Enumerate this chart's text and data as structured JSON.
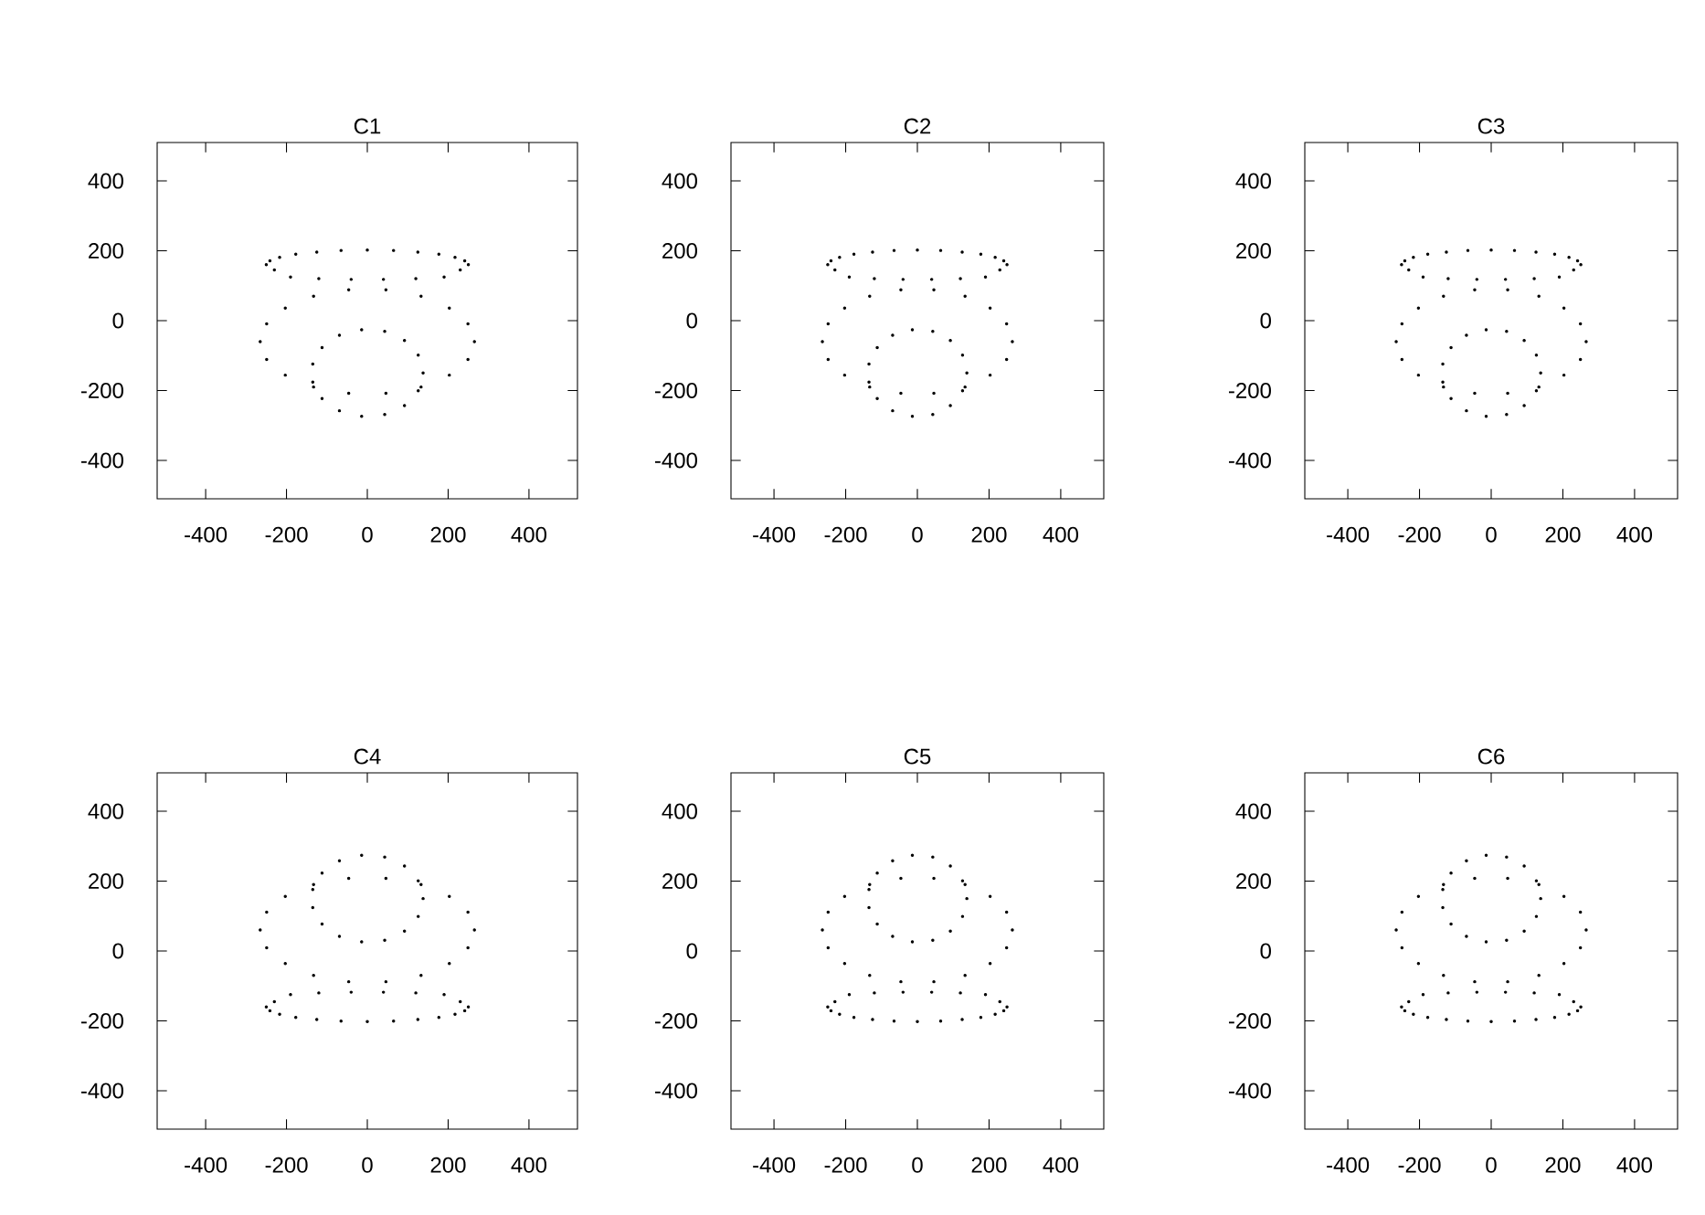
{
  "chart_data": [
    {
      "type": "scatter",
      "title": "C1",
      "xlim": [
        -520,
        520
      ],
      "ylim": [
        -510,
        510
      ],
      "xticks": [
        -400,
        -200,
        0,
        200,
        400
      ],
      "yticks": [
        -400,
        -200,
        0,
        200,
        400
      ],
      "series": [
        {
          "color": "#000000",
          "x": [
            250,
            241,
            217,
            177,
            125,
            65,
            0,
            -65,
            -125,
            -177,
            -217,
            -241,
            -250,
            -230,
            -190,
            -120,
            -40,
            40,
            120,
            190,
            230,
            265,
            249,
            203,
            133,
            46,
            -46,
            -133,
            -203,
            -249,
            -265,
            -249,
            -203,
            -133,
            -46,
            46,
            133,
            203,
            249,
            138,
            126,
            92,
            43,
            -14,
            -69,
            -112,
            -135,
            -135,
            -112,
            -69,
            -14,
            43,
            92,
            126
          ],
          "values": [
            160,
            171,
            181,
            190,
            196,
            201,
            202,
            201,
            196,
            190,
            181,
            171,
            160,
            145,
            125,
            120,
            118,
            118,
            120,
            125,
            145,
            -60,
            -9,
            36,
            70,
            88,
            88,
            70,
            36,
            -9,
            -60,
            -111,
            -156,
            -190,
            -208,
            -208,
            -190,
            -156,
            -111,
            -150,
            -99,
            -57,
            -31,
            -26,
            -42,
            -77,
            -124,
            -176,
            -223,
            -258,
            -274,
            -269,
            -243,
            -201
          ]
        }
      ]
    },
    {
      "type": "scatter",
      "title": "C2",
      "xlim": [
        -520,
        520
      ],
      "ylim": [
        -510,
        510
      ],
      "xticks": [
        -400,
        -200,
        0,
        200,
        400
      ],
      "yticks": [
        -400,
        -200,
        0,
        200,
        400
      ],
      "series": [
        {
          "color": "#000000",
          "x": [
            250,
            241,
            217,
            177,
            125,
            65,
            0,
            -65,
            -125,
            -177,
            -217,
            -241,
            -250,
            -230,
            -190,
            -120,
            -40,
            40,
            120,
            190,
            230,
            265,
            249,
            203,
            133,
            46,
            -46,
            -133,
            -203,
            -249,
            -265,
            -249,
            -203,
            -133,
            -46,
            46,
            133,
            203,
            249,
            138,
            126,
            92,
            43,
            -14,
            -69,
            -112,
            -135,
            -135,
            -112,
            -69,
            -14,
            43,
            92,
            126
          ],
          "values": [
            160,
            171,
            181,
            190,
            196,
            201,
            202,
            201,
            196,
            190,
            181,
            171,
            160,
            145,
            125,
            120,
            118,
            118,
            120,
            125,
            145,
            -60,
            -9,
            36,
            70,
            88,
            88,
            70,
            36,
            -9,
            -60,
            -111,
            -156,
            -190,
            -208,
            -208,
            -190,
            -156,
            -111,
            -150,
            -99,
            -57,
            -31,
            -26,
            -42,
            -77,
            -124,
            -176,
            -223,
            -258,
            -274,
            -269,
            -243,
            -201
          ]
        }
      ]
    },
    {
      "type": "scatter",
      "title": "C3",
      "xlim": [
        -520,
        520
      ],
      "ylim": [
        -510,
        510
      ],
      "xticks": [
        -400,
        -200,
        0,
        200,
        400
      ],
      "yticks": [
        -400,
        -200,
        0,
        200,
        400
      ],
      "series": [
        {
          "color": "#000000",
          "x": [
            250,
            241,
            217,
            177,
            125,
            65,
            0,
            -65,
            -125,
            -177,
            -217,
            -241,
            -250,
            -230,
            -190,
            -120,
            -40,
            40,
            120,
            190,
            230,
            265,
            249,
            203,
            133,
            46,
            -46,
            -133,
            -203,
            -249,
            -265,
            -249,
            -203,
            -133,
            -46,
            46,
            133,
            203,
            249,
            138,
            126,
            92,
            43,
            -14,
            -69,
            -112,
            -135,
            -135,
            -112,
            -69,
            -14,
            43,
            92,
            126
          ],
          "values": [
            160,
            171,
            181,
            190,
            196,
            201,
            202,
            201,
            196,
            190,
            181,
            171,
            160,
            145,
            125,
            120,
            118,
            118,
            120,
            125,
            145,
            -60,
            -9,
            36,
            70,
            88,
            88,
            70,
            36,
            -9,
            -60,
            -111,
            -156,
            -190,
            -208,
            -208,
            -190,
            -156,
            -111,
            -150,
            -99,
            -57,
            -31,
            -26,
            -42,
            -77,
            -124,
            -176,
            -223,
            -258,
            -274,
            -269,
            -243,
            -201
          ]
        }
      ]
    },
    {
      "type": "scatter",
      "title": "C4",
      "xlim": [
        -520,
        520
      ],
      "ylim": [
        -510,
        510
      ],
      "xticks": [
        -400,
        -200,
        0,
        200,
        400
      ],
      "yticks": [
        -400,
        -200,
        0,
        200,
        400
      ],
      "series": [
        {
          "color": "#000000",
          "x": [
            250,
            241,
            217,
            177,
            125,
            65,
            0,
            -65,
            -125,
            -177,
            -217,
            -241,
            -250,
            -230,
            -190,
            -120,
            -40,
            40,
            120,
            190,
            230,
            265,
            249,
            203,
            133,
            46,
            -46,
            -133,
            -203,
            -249,
            -265,
            -249,
            -203,
            -133,
            -46,
            46,
            133,
            203,
            249,
            138,
            126,
            92,
            43,
            -14,
            -69,
            -112,
            -135,
            -135,
            -112,
            -69,
            -14,
            43,
            92,
            126
          ],
          "values": [
            -160,
            -171,
            -181,
            -190,
            -196,
            -201,
            -202,
            -201,
            -196,
            -190,
            -181,
            -171,
            -160,
            -145,
            -125,
            -120,
            -118,
            -118,
            -120,
            -125,
            -145,
            60,
            9,
            -36,
            -70,
            -88,
            -88,
            -70,
            -36,
            9,
            60,
            111,
            156,
            190,
            208,
            208,
            190,
            156,
            111,
            150,
            99,
            57,
            31,
            26,
            42,
            77,
            124,
            176,
            223,
            258,
            274,
            269,
            243,
            201
          ]
        }
      ]
    },
    {
      "type": "scatter",
      "title": "C5",
      "xlim": [
        -520,
        520
      ],
      "ylim": [
        -510,
        510
      ],
      "xticks": [
        -400,
        -200,
        0,
        200,
        400
      ],
      "yticks": [
        -400,
        -200,
        0,
        200,
        400
      ],
      "series": [
        {
          "color": "#000000",
          "x": [
            250,
            241,
            217,
            177,
            125,
            65,
            0,
            -65,
            -125,
            -177,
            -217,
            -241,
            -250,
            -230,
            -190,
            -120,
            -40,
            40,
            120,
            190,
            230,
            265,
            249,
            203,
            133,
            46,
            -46,
            -133,
            -203,
            -249,
            -265,
            -249,
            -203,
            -133,
            -46,
            46,
            133,
            203,
            249,
            138,
            126,
            92,
            43,
            -14,
            -69,
            -112,
            -135,
            -135,
            -112,
            -69,
            -14,
            43,
            92,
            126
          ],
          "values": [
            -160,
            -171,
            -181,
            -190,
            -196,
            -201,
            -202,
            -201,
            -196,
            -190,
            -181,
            -171,
            -160,
            -145,
            -125,
            -120,
            -118,
            -118,
            -120,
            -125,
            -145,
            60,
            9,
            -36,
            -70,
            -88,
            -88,
            -70,
            -36,
            9,
            60,
            111,
            156,
            190,
            208,
            208,
            190,
            156,
            111,
            150,
            99,
            57,
            31,
            26,
            42,
            77,
            124,
            176,
            223,
            258,
            274,
            269,
            243,
            201
          ]
        }
      ]
    },
    {
      "type": "scatter",
      "title": "C6",
      "xlim": [
        -520,
        520
      ],
      "ylim": [
        -510,
        510
      ],
      "xticks": [
        -400,
        -200,
        0,
        200,
        400
      ],
      "yticks": [
        -400,
        -200,
        0,
        200,
        400
      ],
      "series": [
        {
          "color": "#000000",
          "x": [
            250,
            241,
            217,
            177,
            125,
            65,
            0,
            -65,
            -125,
            -177,
            -217,
            -241,
            -250,
            -230,
            -190,
            -120,
            -40,
            40,
            120,
            190,
            230,
            265,
            249,
            203,
            133,
            46,
            -46,
            -133,
            -203,
            -249,
            -265,
            -249,
            -203,
            -133,
            -46,
            46,
            133,
            203,
            249,
            138,
            126,
            92,
            43,
            -14,
            -69,
            -112,
            -135,
            -135,
            -112,
            -69,
            -14,
            43,
            92,
            126
          ],
          "values": [
            -160,
            -171,
            -181,
            -190,
            -196,
            -201,
            -202,
            -201,
            -196,
            -190,
            -181,
            -171,
            -160,
            -145,
            -125,
            -120,
            -118,
            -118,
            -120,
            -125,
            -145,
            60,
            9,
            -36,
            -70,
            -88,
            -88,
            -70,
            -36,
            9,
            60,
            111,
            156,
            190,
            208,
            208,
            190,
            156,
            111,
            150,
            99,
            57,
            31,
            26,
            42,
            77,
            124,
            176,
            223,
            258,
            274,
            269,
            243,
            201
          ]
        }
      ]
    }
  ]
}
